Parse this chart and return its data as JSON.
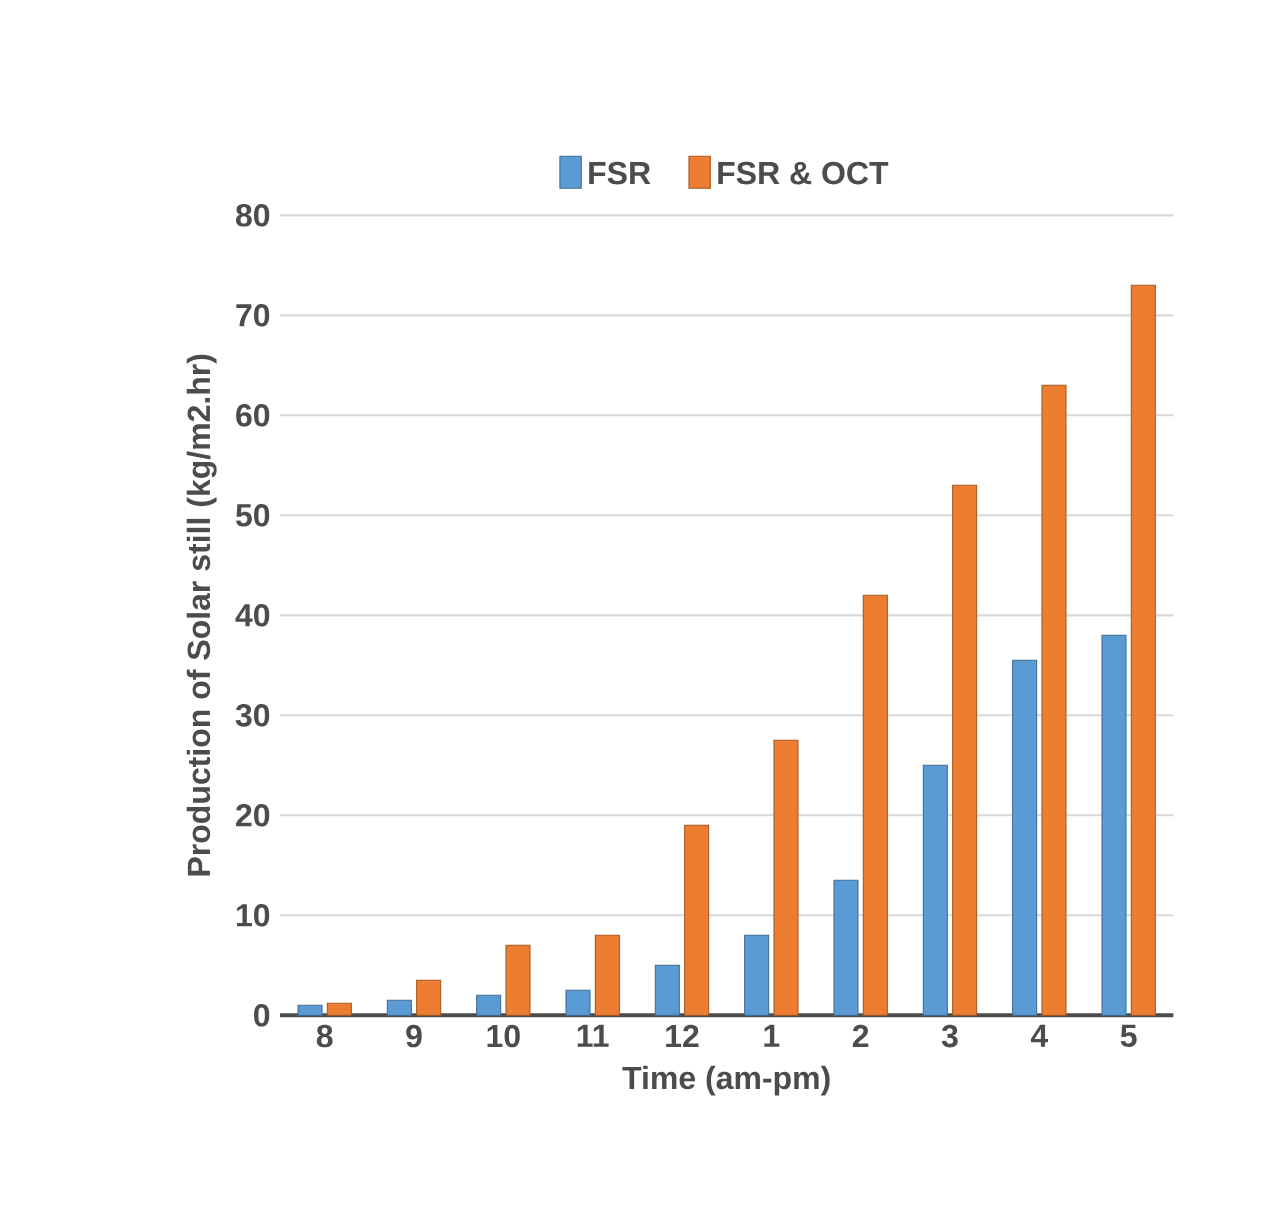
{
  "chart_data": {
    "type": "bar",
    "xlabel": "Time (am-pm)",
    "ylabel": "Production of Solar still (kg/m2.hr)",
    "categories": [
      "8",
      "9",
      "10",
      "11",
      "12",
      "1",
      "2",
      "3",
      "4",
      "5"
    ],
    "series": [
      {
        "name": "FSR",
        "color": "#5b9bd5",
        "values": [
          1,
          1.5,
          2,
          2.5,
          5,
          8,
          13.5,
          25,
          35.5,
          38
        ]
      },
      {
        "name": "FSR & OCT",
        "color": "#ed7d31",
        "values": [
          1.2,
          3.5,
          7,
          8,
          19,
          27.5,
          42,
          53,
          63,
          73
        ]
      }
    ],
    "ylim": [
      0,
      80
    ],
    "yticks": [
      0,
      10,
      20,
      30,
      40,
      50,
      60,
      70,
      80
    ],
    "grid": "y",
    "legend": "top"
  }
}
